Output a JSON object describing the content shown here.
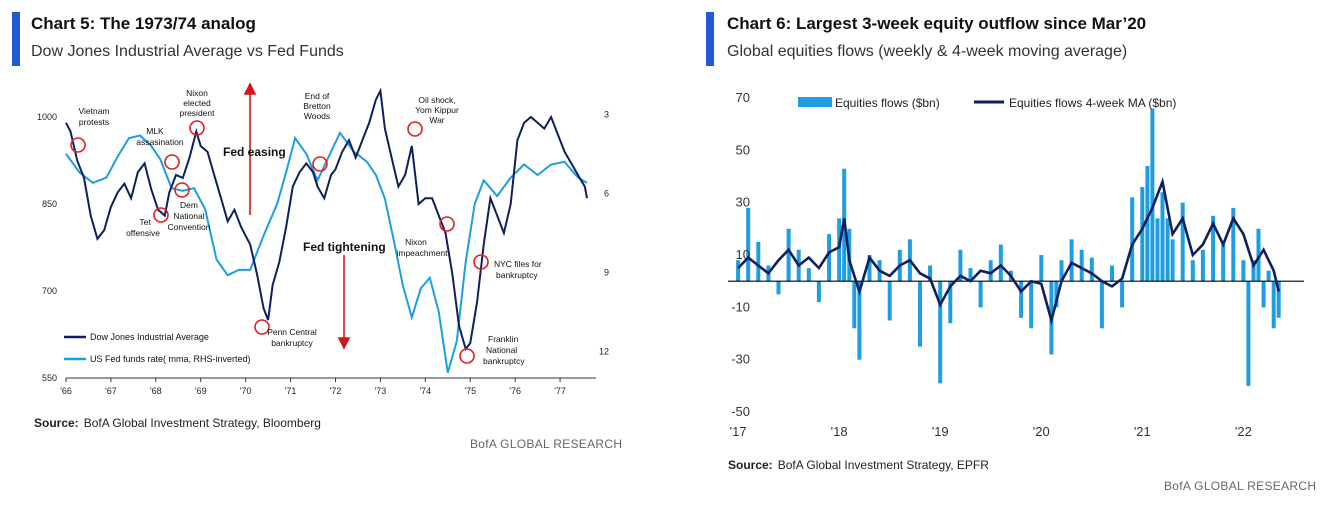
{
  "left": {
    "title": "Chart 5: The 1973/74 analog",
    "subtitle": "Dow Jones Industrial Average vs Fed Funds",
    "source_label": "Source:",
    "source_text": "BofA Global Investment Strategy, Bloomberg",
    "brand": "BofA GLOBAL RESEARCH"
  },
  "right": {
    "title": "Chart 6: Largest 3-week equity outflow since Mar’20",
    "subtitle": "Global equities flows (weekly & 4-week moving average)",
    "source_label": "Source:",
    "source_text": "BofA Global Investment Strategy, EPFR",
    "brand": "BofA GLOBAL RESEARCH"
  },
  "chart_data": [
    {
      "type": "line",
      "title": "Chart 5: The 1973/74 analog",
      "subtitle": "Dow Jones Industrial Average vs Fed Funds",
      "xlim": [
        1966,
        1977.8
      ],
      "x_ticks": [
        "'66",
        "'67",
        "'68",
        "'69",
        "'70",
        "'71",
        "'72",
        "'73",
        "'74",
        "'75",
        "'76",
        "'77"
      ],
      "ylim": [
        550,
        1050
      ],
      "y_ticks": [
        550,
        700,
        850,
        1000
      ],
      "y2lim": [
        13,
        2
      ],
      "y2_ticks": [
        3,
        6,
        9,
        12
      ],
      "y2_inverted": true,
      "series": [
        {
          "name": "Dow Jones Industrial Average",
          "axis": "left",
          "color": "#0d1f5c",
          "x": [
            1966.0,
            1966.1,
            1966.25,
            1966.4,
            1966.55,
            1966.7,
            1966.85,
            1967.0,
            1967.15,
            1967.3,
            1967.45,
            1967.6,
            1967.75,
            1967.9,
            1968.05,
            1968.2,
            1968.3,
            1968.45,
            1968.6,
            1968.75,
            1968.9,
            1969.0,
            1969.15,
            1969.3,
            1969.45,
            1969.6,
            1969.75,
            1969.9,
            1970.1,
            1970.25,
            1970.4,
            1970.5,
            1970.6,
            1970.75,
            1970.9,
            1971.05,
            1971.2,
            1971.35,
            1971.5,
            1971.6,
            1971.75,
            1971.9,
            1972.0,
            1972.15,
            1972.3,
            1972.45,
            1972.6,
            1972.75,
            1972.9,
            1973.0,
            1973.1,
            1973.25,
            1973.4,
            1973.55,
            1973.7,
            1973.85,
            1974.0,
            1974.15,
            1974.3,
            1974.45,
            1974.6,
            1974.75,
            1974.9,
            1975.0,
            1975.15,
            1975.3,
            1975.45,
            1975.6,
            1975.75,
            1975.9,
            1976.05,
            1976.2,
            1976.35,
            1976.5,
            1976.65,
            1976.8,
            1976.95,
            1977.1,
            1977.25,
            1977.4,
            1977.55,
            1977.6
          ],
          "values": [
            990,
            975,
            925,
            895,
            830,
            790,
            805,
            845,
            870,
            885,
            860,
            905,
            920,
            875,
            840,
            830,
            870,
            900,
            895,
            930,
            975,
            950,
            940,
            900,
            860,
            820,
            840,
            810,
            780,
            730,
            670,
            650,
            710,
            750,
            810,
            880,
            905,
            920,
            905,
            880,
            860,
            900,
            910,
            940,
            960,
            930,
            960,
            990,
            1030,
            1045,
            980,
            930,
            880,
            900,
            950,
            850,
            860,
            860,
            830,
            800,
            730,
            640,
            600,
            610,
            680,
            780,
            860,
            830,
            800,
            850,
            960,
            990,
            1000,
            990,
            980,
            1000,
            970,
            940,
            920,
            900,
            880,
            860
          ]
        },
        {
          "name": "US Fed funds rate( mma, RHS-inverted)",
          "axis": "right",
          "color": "#1e9ee0",
          "x": [
            1966.0,
            1966.3,
            1966.6,
            1966.9,
            1967.15,
            1967.4,
            1967.65,
            1967.9,
            1968.1,
            1968.35,
            1968.6,
            1968.85,
            1969.1,
            1969.35,
            1969.6,
            1969.85,
            1970.1,
            1970.4,
            1970.7,
            1970.9,
            1971.1,
            1971.35,
            1971.6,
            1971.85,
            1972.1,
            1972.4,
            1972.7,
            1972.9,
            1973.1,
            1973.3,
            1973.5,
            1973.7,
            1973.9,
            1974.1,
            1974.3,
            1974.5,
            1974.7,
            1974.9,
            1975.1,
            1975.3,
            1975.6,
            1975.9,
            1976.2,
            1976.5,
            1976.8,
            1977.1,
            1977.4,
            1977.6
          ],
          "values": [
            4.5,
            5.2,
            5.6,
            5.4,
            4.6,
            3.9,
            3.8,
            4.2,
            4.7,
            5.8,
            5.9,
            5.8,
            6.6,
            8.5,
            9.1,
            8.9,
            8.9,
            7.6,
            6.4,
            5.2,
            3.9,
            4.5,
            5.5,
            4.6,
            3.7,
            4.4,
            4.8,
            5.3,
            6.2,
            7.8,
            9.5,
            10.7,
            9.6,
            9.2,
            10.5,
            12.8,
            11.6,
            8.6,
            6.4,
            5.5,
            6.1,
            5.4,
            4.9,
            5.3,
            4.9,
            4.8,
            5.4,
            5.6
          ]
        }
      ],
      "annotations": [
        "Vietnam protests",
        "MLK assasination",
        "Nixon elected president",
        "Tet offensive",
        "Dem National Convention",
        "Fed easing",
        "End of Bretton Woods",
        "Fed tightening",
        "Oil shock, Yom Kippur War",
        "Nixon impeachment",
        "NYC files for bankruptcy",
        "Penn Central bankruptcy",
        "Franklin National bankruptcy"
      ],
      "legend": "bottom-left"
    },
    {
      "type": "bar",
      "title": "Chart 6: Largest 3-week equity outflow since Mar’20",
      "subtitle": "Global equities flows (weekly & 4-week moving average)",
      "xlim": [
        2016.9,
        2022.6
      ],
      "x_ticks": [
        "'17",
        "'18",
        "'19",
        "'20",
        "'21",
        "'22"
      ],
      "ylim": [
        -50,
        70
      ],
      "y_ticks": [
        70,
        50,
        30,
        10,
        -10,
        -30,
        -50
      ],
      "series": [
        {
          "name": "Equities flows ($bn)",
          "kind": "bar",
          "color": "#1e9ee0",
          "x": [
            2017.0,
            2017.1,
            2017.2,
            2017.3,
            2017.4,
            2017.5,
            2017.6,
            2017.7,
            2017.8,
            2017.9,
            2018.0,
            2018.05,
            2018.1,
            2018.15,
            2018.2,
            2018.3,
            2018.4,
            2018.5,
            2018.6,
            2018.7,
            2018.8,
            2018.9,
            2019.0,
            2019.1,
            2019.2,
            2019.3,
            2019.4,
            2019.5,
            2019.6,
            2019.7,
            2019.8,
            2019.9,
            2020.0,
            2020.1,
            2020.15,
            2020.2,
            2020.3,
            2020.4,
            2020.5,
            2020.6,
            2020.7,
            2020.8,
            2020.9,
            2021.0,
            2021.05,
            2021.1,
            2021.15,
            2021.2,
            2021.25,
            2021.3,
            2021.4,
            2021.5,
            2021.6,
            2021.7,
            2021.8,
            2021.9,
            2022.0,
            2022.05,
            2022.1,
            2022.15,
            2022.2,
            2022.25,
            2022.3,
            2022.35
          ],
          "values": [
            8,
            28,
            15,
            6,
            -5,
            20,
            12,
            5,
            -8,
            18,
            24,
            43,
            20,
            -18,
            -30,
            10,
            8,
            -15,
            12,
            16,
            -25,
            6,
            -39,
            -16,
            12,
            5,
            -10,
            8,
            14,
            4,
            -14,
            -18,
            10,
            -28,
            -10,
            8,
            16,
            12,
            9,
            -18,
            6,
            -10,
            32,
            36,
            44,
            66,
            24,
            34,
            24,
            16,
            30,
            8,
            12,
            25,
            14,
            28,
            8,
            -40,
            8,
            20,
            -10,
            4,
            -18,
            -14
          ]
        },
        {
          "name": "Equities flows 4-week MA ($bn)",
          "kind": "line",
          "color": "#0d1f5c",
          "x": [
            2017.0,
            2017.1,
            2017.2,
            2017.3,
            2017.4,
            2017.5,
            2017.6,
            2017.7,
            2017.8,
            2017.9,
            2018.0,
            2018.05,
            2018.1,
            2018.2,
            2018.3,
            2018.4,
            2018.5,
            2018.6,
            2018.7,
            2018.8,
            2018.9,
            2019.0,
            2019.1,
            2019.2,
            2019.3,
            2019.4,
            2019.5,
            2019.6,
            2019.7,
            2019.8,
            2019.9,
            2020.0,
            2020.1,
            2020.2,
            2020.3,
            2020.4,
            2020.5,
            2020.6,
            2020.7,
            2020.8,
            2020.9,
            2021.0,
            2021.1,
            2021.2,
            2021.3,
            2021.4,
            2021.5,
            2021.6,
            2021.7,
            2021.8,
            2021.9,
            2022.0,
            2022.1,
            2022.2,
            2022.3,
            2022.35
          ],
          "values": [
            5,
            9,
            6,
            3,
            8,
            12,
            6,
            9,
            5,
            11,
            13,
            24,
            8,
            -4,
            9,
            4,
            2,
            6,
            8,
            3,
            1,
            -9,
            -2,
            2,
            0,
            4,
            3,
            6,
            2,
            -4,
            0,
            -1,
            -15,
            0,
            7,
            5,
            3,
            0,
            -2,
            1,
            14,
            20,
            28,
            38,
            18,
            24,
            10,
            14,
            22,
            14,
            24,
            18,
            6,
            12,
            4,
            -4
          ]
        }
      ],
      "legend": "top"
    }
  ]
}
